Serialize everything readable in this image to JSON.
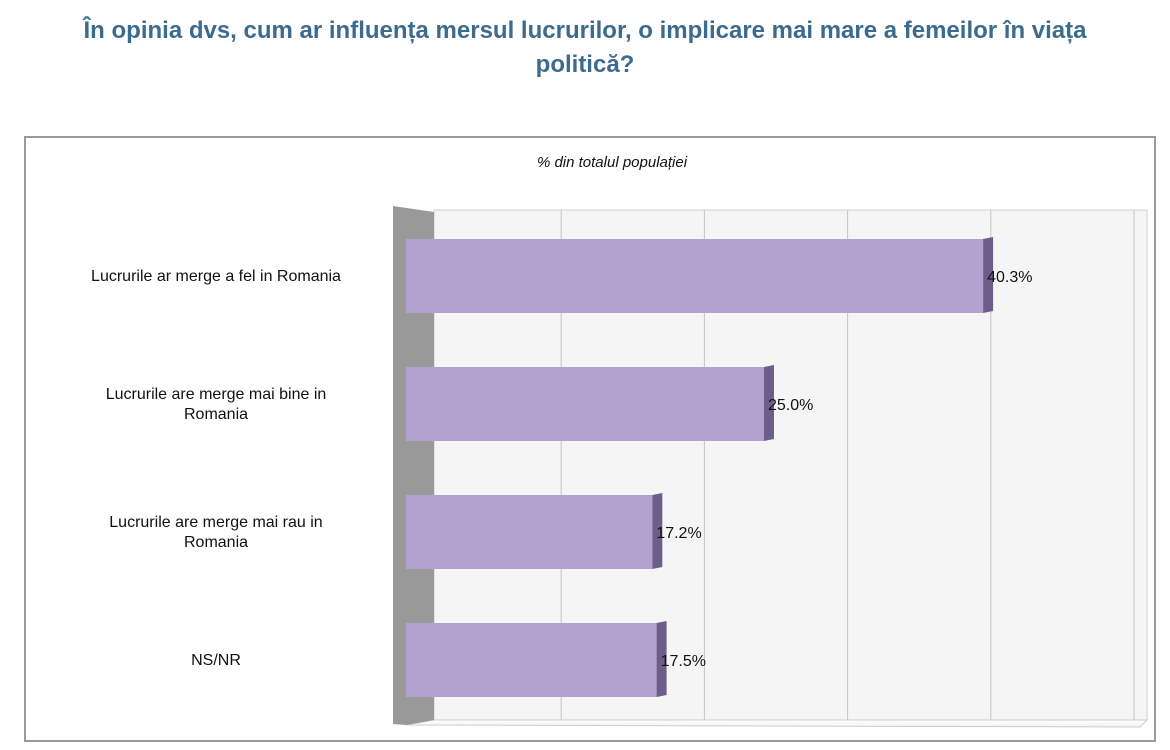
{
  "title": "În opinia dvs, cum ar influența mersul lucrurilor, o implicare mai mare a femeilor în viața politică?",
  "chart_data": {
    "type": "bar",
    "orientation": "horizontal",
    "subtitle": "% din totalul populației",
    "categories": [
      [
        "Lucrurile ar merge a fel in Romania"
      ],
      [
        "Lucrurile are merge mai bine in",
        "Romania"
      ],
      [
        "Lucrurile are merge mai rau in",
        "Romania"
      ],
      [
        "NS/NR"
      ]
    ],
    "values": [
      40.3,
      25.0,
      17.2,
      17.5
    ],
    "value_labels": [
      "40.3%",
      "25.0%",
      "17.2%",
      "17.5%"
    ],
    "xlim": [
      0,
      50
    ],
    "grid": true,
    "bar_color": "#b3a2cf",
    "bar_side_color": "#6e5d8a",
    "wall_color": "#999999"
  }
}
